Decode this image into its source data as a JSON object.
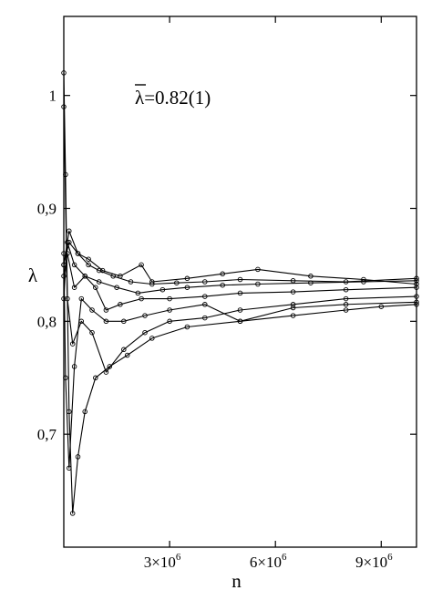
{
  "chart_data": {
    "type": "line",
    "title": "",
    "xlabel": "n",
    "ylabel": "λ",
    "annotation": {
      "symbol": "λ",
      "text": "=0.82(1)"
    },
    "xlim": [
      0,
      10000000
    ],
    "ylim": [
      0.6,
      1.07
    ],
    "grid": false,
    "legend": "none",
    "x_ticks": [
      {
        "value": 3000000,
        "mantissa": "3×10",
        "exponent": "6"
      },
      {
        "value": 6000000,
        "mantissa": "6×10",
        "exponent": "6"
      },
      {
        "value": 9000000,
        "mantissa": "9×10",
        "exponent": "6"
      }
    ],
    "y_ticks": [
      {
        "value": 0.7,
        "label": "0,7"
      },
      {
        "value": 0.8,
        "label": "0,8"
      },
      {
        "value": 0.9,
        "label": "0,9"
      },
      {
        "value": 1.0,
        "label": "1"
      }
    ],
    "line_color": "#000000",
    "series": [
      {
        "x": [
          0,
          50000,
          150000,
          250000,
          400000,
          600000,
          900000,
          1300000,
          1800000,
          2500000,
          3500000,
          5000000,
          6500000,
          8000000,
          9000000,
          10000000
        ],
        "y": [
          1.02,
          0.93,
          0.72,
          0.63,
          0.68,
          0.72,
          0.75,
          0.76,
          0.77,
          0.785,
          0.795,
          0.8,
          0.805,
          0.81,
          0.813,
          0.815
        ]
      },
      {
        "x": [
          0,
          50000,
          150000,
          300000,
          500000,
          800000,
          1200000,
          1700000,
          2300000,
          3000000,
          4000000,
          5000000,
          6500000,
          8000000,
          10000000
        ],
        "y": [
          0.86,
          0.75,
          0.67,
          0.76,
          0.82,
          0.81,
          0.8,
          0.8,
          0.805,
          0.81,
          0.815,
          0.8,
          0.812,
          0.815,
          0.817
        ]
      },
      {
        "x": [
          0,
          100000,
          250000,
          500000,
          800000,
          1200000,
          1700000,
          2300000,
          3000000,
          4000000,
          5000000,
          6500000,
          8000000,
          10000000
        ],
        "y": [
          0.99,
          0.82,
          0.78,
          0.8,
          0.79,
          0.755,
          0.775,
          0.79,
          0.8,
          0.803,
          0.81,
          0.815,
          0.82,
          0.822
        ]
      },
      {
        "x": [
          0,
          100000,
          300000,
          600000,
          900000,
          1200000,
          1600000,
          2200000,
          3000000,
          4000000,
          5000000,
          6500000,
          8000000,
          10000000
        ],
        "y": [
          0.84,
          0.86,
          0.83,
          0.84,
          0.83,
          0.81,
          0.815,
          0.82,
          0.82,
          0.822,
          0.825,
          0.826,
          0.828,
          0.83
        ]
      },
      {
        "x": [
          0,
          100000,
          300000,
          600000,
          1000000,
          1500000,
          2100000,
          2800000,
          3500000,
          4500000,
          5500000,
          7000000,
          8500000,
          10000000
        ],
        "y": [
          0.82,
          0.87,
          0.85,
          0.84,
          0.835,
          0.83,
          0.825,
          0.828,
          0.83,
          0.832,
          0.833,
          0.834,
          0.835,
          0.836
        ]
      },
      {
        "x": [
          0,
          150000,
          400000,
          700000,
          1000000,
          1400000,
          1900000,
          2500000,
          3200000,
          4000000,
          5000000,
          6500000,
          8000000,
          10000000
        ],
        "y": [
          0.85,
          0.88,
          0.86,
          0.85,
          0.845,
          0.84,
          0.835,
          0.833,
          0.834,
          0.835,
          0.837,
          0.836,
          0.835,
          0.838
        ]
      },
      {
        "x": [
          0,
          150000,
          400000,
          700000,
          1100000,
          1600000,
          2200000,
          2500000,
          3500000,
          4500000,
          5500000,
          7000000,
          8500000,
          10000000
        ],
        "y": [
          0.85,
          0.87,
          0.86,
          0.855,
          0.845,
          0.84,
          0.85,
          0.835,
          0.838,
          0.842,
          0.846,
          0.84,
          0.837,
          0.833
        ]
      }
    ]
  }
}
